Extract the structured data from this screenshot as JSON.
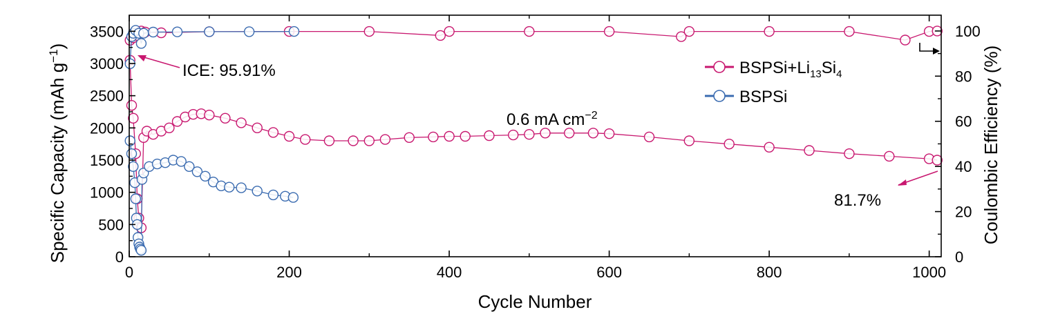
{
  "chart_data": {
    "type": "scatter",
    "xlabel": "Cycle Number",
    "ylabel_left": "Specific Capacity (mAh g",
    "ylabel_left_sup": "−1",
    "ylabel_left_tail": ")",
    "ylabel_right": "Coulombic Efficiency (%)",
    "xlim": [
      0,
      1015
    ],
    "ylim_left": [
      0,
      3750
    ],
    "ylim_right": [
      0,
      107
    ],
    "x_ticks": [
      0,
      200,
      400,
      600,
      800,
      1000
    ],
    "x_tick_labels": [
      "0",
      "200",
      "400",
      "600",
      "800",
      "1000"
    ],
    "y_left_ticks": [
      0,
      500,
      1000,
      1500,
      2000,
      2500,
      3000,
      3500
    ],
    "y_left_tick_labels": [
      "0",
      "500",
      "1000",
      "1500",
      "2000",
      "2500",
      "3000",
      "3500"
    ],
    "y_right_ticks": [
      0,
      20,
      40,
      60,
      80,
      100
    ],
    "y_right_tick_labels": [
      "0",
      "20",
      "40",
      "60",
      "80",
      "100"
    ],
    "grid": false,
    "legend_position": "right, upper",
    "colors": {
      "bspsi_li": "#C8176F",
      "bspsi": "#3A6BB0"
    },
    "series": [
      {
        "name": "BSPSi+Li",
        "name_sub1": "13",
        "name_mid": "Si",
        "name_sub2": "4",
        "axis": "left",
        "color": "#C8176F",
        "capacity_points": [
          [
            1,
            3050
          ],
          [
            3,
            2350
          ],
          [
            5,
            2150
          ],
          [
            8,
            1600
          ],
          [
            10,
            900
          ],
          [
            12,
            600
          ],
          [
            15,
            450
          ],
          [
            18,
            1850
          ],
          [
            22,
            1950
          ],
          [
            30,
            1900
          ],
          [
            40,
            1950
          ],
          [
            50,
            2000
          ],
          [
            60,
            2100
          ],
          [
            70,
            2170
          ],
          [
            80,
            2210
          ],
          [
            90,
            2220
          ],
          [
            100,
            2200
          ],
          [
            120,
            2150
          ],
          [
            140,
            2080
          ],
          [
            160,
            2000
          ],
          [
            180,
            1930
          ],
          [
            200,
            1870
          ],
          [
            220,
            1820
          ],
          [
            250,
            1800
          ],
          [
            280,
            1800
          ],
          [
            300,
            1800
          ],
          [
            320,
            1820
          ],
          [
            350,
            1850
          ],
          [
            380,
            1860
          ],
          [
            400,
            1870
          ],
          [
            420,
            1870
          ],
          [
            450,
            1880
          ],
          [
            480,
            1890
          ],
          [
            500,
            1900
          ],
          [
            520,
            1920
          ],
          [
            550,
            1920
          ],
          [
            580,
            1920
          ],
          [
            600,
            1910
          ],
          [
            650,
            1860
          ],
          [
            700,
            1800
          ],
          [
            750,
            1750
          ],
          [
            800,
            1700
          ],
          [
            850,
            1650
          ],
          [
            900,
            1600
          ],
          [
            950,
            1560
          ],
          [
            1000,
            1520
          ],
          [
            1010,
            1500
          ]
        ],
        "ce_points": [
          [
            1,
            95.91
          ],
          [
            5,
            97
          ],
          [
            10,
            98
          ],
          [
            15,
            100
          ],
          [
            20,
            99.5
          ],
          [
            40,
            99.2
          ],
          [
            100,
            99.7
          ],
          [
            200,
            99.8
          ],
          [
            300,
            99.8
          ],
          [
            389,
            98
          ],
          [
            400,
            99.8
          ],
          [
            500,
            99.8
          ],
          [
            600,
            99.8
          ],
          [
            690,
            97.5
          ],
          [
            700,
            99.8
          ],
          [
            800,
            99.8
          ],
          [
            900,
            99.8
          ],
          [
            970,
            96
          ],
          [
            1000,
            99.8
          ],
          [
            1010,
            100
          ]
        ]
      },
      {
        "name": "BSPSi",
        "axis": "left",
        "color": "#3A6BB0",
        "capacity_points": [
          [
            1,
            1800
          ],
          [
            3,
            1600
          ],
          [
            5,
            1400
          ],
          [
            7,
            1150
          ],
          [
            8,
            900
          ],
          [
            9,
            600
          ],
          [
            10,
            500
          ],
          [
            11,
            300
          ],
          [
            12,
            200
          ],
          [
            13,
            150
          ],
          [
            14,
            120
          ],
          [
            15,
            100
          ],
          [
            16,
            1200
          ],
          [
            18,
            1300
          ],
          [
            25,
            1400
          ],
          [
            35,
            1440
          ],
          [
            45,
            1460
          ],
          [
            55,
            1500
          ],
          [
            65,
            1480
          ],
          [
            75,
            1400
          ],
          [
            85,
            1320
          ],
          [
            95,
            1250
          ],
          [
            105,
            1160
          ],
          [
            115,
            1100
          ],
          [
            125,
            1080
          ],
          [
            140,
            1070
          ],
          [
            160,
            1020
          ],
          [
            180,
            960
          ],
          [
            195,
            940
          ],
          [
            205,
            920
          ]
        ],
        "ce_points": [
          [
            1,
            85.5
          ],
          [
            3,
            97.5
          ],
          [
            5,
            99
          ],
          [
            8,
            100.3
          ],
          [
            12,
            99
          ],
          [
            15,
            94.5
          ],
          [
            18,
            99
          ],
          [
            30,
            99.5
          ],
          [
            60,
            99.6
          ],
          [
            100,
            99.7
          ],
          [
            150,
            99.7
          ],
          [
            206,
            99.8
          ]
        ]
      }
    ],
    "annotations": {
      "ice": "ICE: 95.91%",
      "rate": "0.6 mA cm",
      "rate_sup": "−2",
      "retention": "81.7%"
    }
  }
}
